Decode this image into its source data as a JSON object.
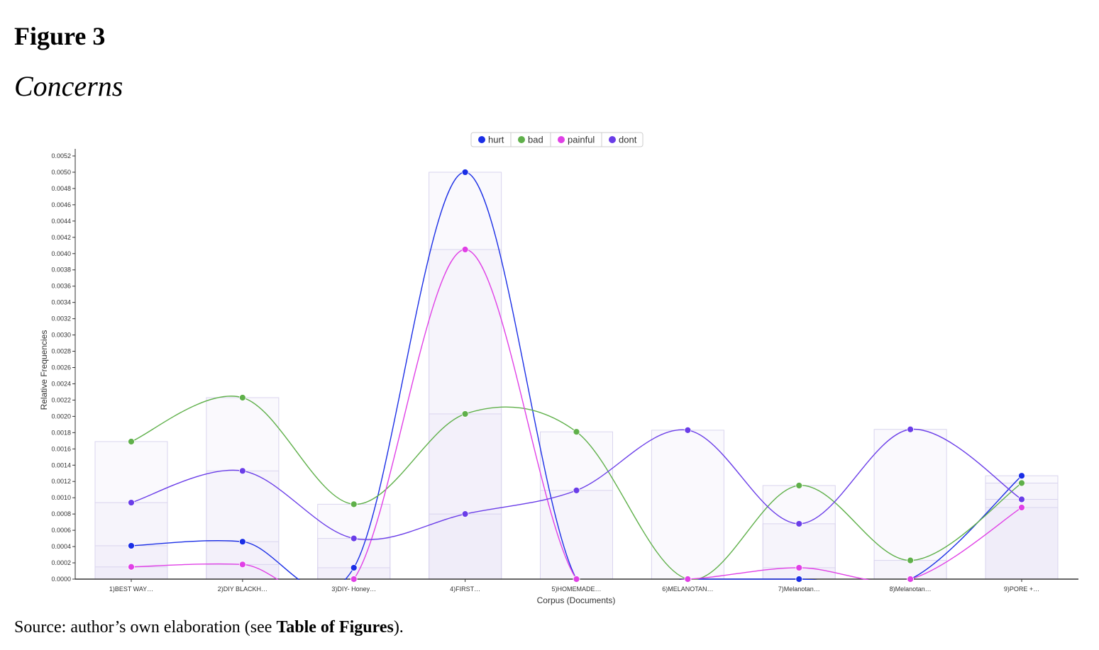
{
  "figure": {
    "label": "Figure 3",
    "title": "Concerns",
    "source_prefix": "Source: author’s own elaboration (see ",
    "source_bold": "Table of Figures",
    "source_suffix": ")."
  },
  "chart_data": {
    "type": "line",
    "title": "Concerns",
    "xlabel": "Corpus (Documents)",
    "ylabel": "Relative Frequencies",
    "ylim": [
      0,
      0.0052
    ],
    "ytick_step": 0.0002,
    "categories": [
      "1)BEST WAY…",
      "2)DIY BLACKH…",
      "3)DIY- Honey…",
      "4)FIRST…",
      "5)HOMEMADE…",
      "6)MELANOTAN…",
      "7)Melanotan…",
      "8)Melanotan…",
      "9)PORE +…"
    ],
    "legend": [
      "hurt",
      "bad",
      "painful",
      "dont"
    ],
    "legend_position": "top-center",
    "series": [
      {
        "name": "hurt",
        "color": "#1a2ee6",
        "values": [
          0.00041,
          0.00046,
          0.00014,
          0.005,
          0.0,
          0.0,
          0.0,
          0.0,
          0.00127
        ]
      },
      {
        "name": "bad",
        "color": "#5fb04a",
        "values": [
          0.00169,
          0.00223,
          0.00092,
          0.00203,
          0.00181,
          0.0,
          0.00115,
          0.00023,
          0.00118
        ]
      },
      {
        "name": "painful",
        "color": "#e040e6",
        "values": [
          0.00015,
          0.00018,
          0.0,
          0.00405,
          0.0,
          0.0,
          0.00014,
          0.0,
          0.00088
        ]
      },
      {
        "name": "dont",
        "color": "#6a3de8",
        "values": [
          0.00094,
          0.00133,
          0.0005,
          0.0008,
          0.00109,
          0.00183,
          0.00068,
          0.00184,
          0.00098
        ]
      }
    ]
  }
}
